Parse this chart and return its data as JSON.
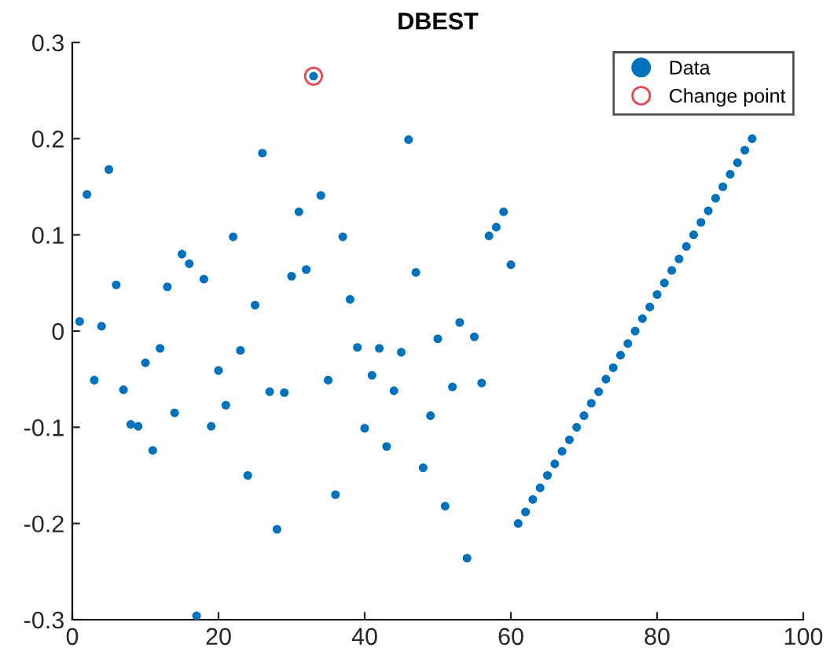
{
  "chart_data": {
    "type": "scatter",
    "title": "DBEST",
    "xlim": [
      0,
      100
    ],
    "ylim": [
      -0.3,
      0.3
    ],
    "xticks": [
      0,
      20,
      40,
      60,
      80,
      100
    ],
    "yticks": [
      -0.3,
      -0.2,
      -0.1,
      0,
      0.1,
      0.2,
      0.3
    ],
    "grid": false,
    "legend": "top right",
    "series": [
      {
        "name": "Data",
        "color": "#0072bd",
        "marker": "circle",
        "x": [
          1,
          2,
          3,
          4,
          5,
          6,
          7,
          8,
          9,
          10,
          11,
          12,
          13,
          14,
          15,
          16,
          17,
          18,
          19,
          20,
          21,
          22,
          23,
          24,
          25,
          26,
          27,
          28,
          29,
          30,
          31,
          32,
          33,
          34,
          35,
          36,
          37,
          38,
          39,
          40,
          41,
          42,
          43,
          44,
          45,
          46,
          47,
          48,
          49,
          50,
          51,
          52,
          53,
          54,
          55,
          56,
          57,
          58,
          59,
          60,
          61,
          62,
          63,
          64,
          65,
          66,
          67,
          68,
          69,
          70,
          71,
          72,
          73,
          74,
          75,
          76,
          77,
          78,
          79,
          80,
          81,
          82,
          83,
          84,
          85,
          86,
          87,
          88,
          89,
          90,
          91,
          92,
          93
        ],
        "values": [
          0.01,
          0.142,
          -0.051,
          0.005,
          0.168,
          0.048,
          -0.061,
          -0.097,
          -0.099,
          -0.033,
          -0.124,
          -0.018,
          0.046,
          -0.085,
          0.08,
          0.07,
          -0.296,
          0.054,
          -0.099,
          -0.041,
          -0.077,
          0.098,
          -0.02,
          -0.15,
          0.027,
          0.185,
          -0.063,
          -0.206,
          -0.064,
          0.057,
          0.124,
          0.064,
          0.265,
          0.141,
          -0.051,
          -0.17,
          0.098,
          0.033,
          -0.017,
          -0.101,
          -0.046,
          -0.018,
          -0.12,
          -0.062,
          -0.022,
          0.199,
          0.061,
          -0.142,
          -0.088,
          -0.008,
          -0.182,
          -0.058,
          0.009,
          -0.236,
          -0.006,
          -0.054,
          0.099,
          0.108,
          0.124,
          0.069,
          -0.2,
          -0.188,
          -0.175,
          -0.163,
          -0.15,
          -0.138,
          -0.125,
          -0.113,
          -0.1,
          -0.088,
          -0.075,
          -0.063,
          -0.05,
          -0.038,
          -0.025,
          -0.013,
          0,
          0.013,
          0.025,
          0.038,
          0.05,
          0.063,
          0.075,
          0.088,
          0.1,
          0.113,
          0.125,
          0.138,
          0.15,
          0.163,
          0.175,
          0.188,
          0.2
        ]
      },
      {
        "name": "Change point",
        "color": "#e8474f",
        "marker": "open circle",
        "x": [
          33
        ],
        "values": [
          0.265
        ]
      }
    ]
  }
}
